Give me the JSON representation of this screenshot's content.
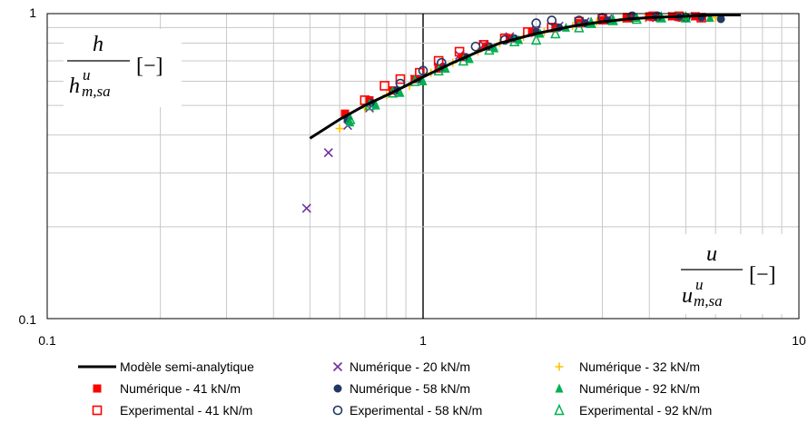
{
  "chart_data": {
    "type": "scatter",
    "xscale": "log",
    "yscale": "log",
    "xlim": [
      0.1,
      10
    ],
    "ylim": [
      0.1,
      1
    ],
    "grid": true,
    "legend_position": "bottom",
    "x_ticks": [
      "0.1",
      "1",
      "10"
    ],
    "y_ticks": [
      "1",
      "0.1"
    ],
    "ylabel": {
      "num": "h",
      "den_base": "h",
      "den_sup": "u",
      "den_sub": "m,sa",
      "unit": "[−]"
    },
    "xlabel": {
      "num": "u",
      "den_base": "u",
      "den_sup": "u",
      "den_sub": "m,sa",
      "unit": "[−]"
    },
    "colors": {
      "black": "#000000",
      "purple": "#7030A0",
      "orange": "#FFC000",
      "red": "#FF0000",
      "navy": "#203864",
      "green": "#00B050"
    },
    "series": [
      {
        "name": "Modèle semi-analytique",
        "kind": "line",
        "color": "#000000",
        "x": [
          0.5,
          0.6,
          0.7,
          0.8,
          0.9,
          1.0,
          1.2,
          1.4,
          1.6,
          2.0,
          2.5,
          3.0,
          3.5,
          4.0,
          5.0,
          6.0,
          7.0
        ],
        "y": [
          0.39,
          0.45,
          0.5,
          0.54,
          0.58,
          0.62,
          0.69,
          0.75,
          0.8,
          0.86,
          0.91,
          0.94,
          0.96,
          0.97,
          0.98,
          0.99,
          0.99
        ]
      },
      {
        "name": "Numérique - 20 kN/m",
        "kind": "marker",
        "marker": "x",
        "color": "#7030A0",
        "x": [
          0.49,
          0.56,
          0.63,
          0.72,
          0.83,
          0.95,
          1.1,
          1.25,
          1.45,
          1.7,
          2.0,
          2.3,
          2.7,
          3.1,
          3.5,
          4.0,
          4.6,
          5.3
        ],
        "y": [
          0.23,
          0.35,
          0.43,
          0.49,
          0.55,
          0.61,
          0.67,
          0.73,
          0.79,
          0.84,
          0.88,
          0.91,
          0.94,
          0.96,
          0.97,
          0.97,
          0.98,
          0.98
        ]
      },
      {
        "name": "Numérique - 32 kN/m",
        "kind": "marker",
        "marker": "plus",
        "color": "#FFC000",
        "x": [
          0.6,
          0.7,
          0.8,
          0.92,
          1.05,
          1.2,
          1.4,
          1.6,
          1.85,
          2.1,
          2.5,
          2.9,
          3.4,
          3.9,
          4.5,
          5.2,
          6.0
        ],
        "y": [
          0.42,
          0.49,
          0.54,
          0.58,
          0.64,
          0.69,
          0.75,
          0.8,
          0.84,
          0.87,
          0.91,
          0.94,
          0.96,
          0.97,
          0.98,
          0.98,
          0.97
        ]
      },
      {
        "name": "Numérique - 41 kN/m",
        "kind": "marker",
        "marker": "square",
        "color": "#FF0000",
        "x": [
          0.62,
          0.72,
          0.83,
          0.95,
          1.1,
          1.27,
          1.47,
          1.7,
          1.95,
          2.25,
          2.6,
          3.0,
          3.5,
          4.0,
          4.6,
          5.3
        ],
        "y": [
          0.47,
          0.52,
          0.56,
          0.61,
          0.66,
          0.72,
          0.78,
          0.83,
          0.87,
          0.9,
          0.93,
          0.95,
          0.97,
          0.98,
          0.98,
          0.98
        ]
      },
      {
        "name": "Numérique - 58 kN/m",
        "kind": "marker",
        "marker": "circle",
        "color": "#203864",
        "x": [
          0.63,
          0.73,
          0.85,
          0.98,
          1.13,
          1.3,
          1.5,
          1.75,
          2.0,
          2.3,
          2.7,
          3.1,
          3.6,
          4.2,
          4.8,
          5.5,
          6.2
        ],
        "y": [
          0.45,
          0.51,
          0.56,
          0.61,
          0.67,
          0.72,
          0.78,
          0.83,
          0.87,
          0.9,
          0.93,
          0.95,
          0.97,
          0.97,
          0.97,
          0.97,
          0.96
        ]
      },
      {
        "name": "Numérique - 92 kN/m",
        "kind": "marker",
        "marker": "triangle",
        "color": "#00B050",
        "x": [
          0.64,
          0.75,
          0.87,
          1.0,
          1.15,
          1.33,
          1.55,
          1.8,
          2.05,
          2.4,
          2.8,
          3.2,
          3.7,
          4.3,
          5.0,
          5.8
        ],
        "y": [
          0.44,
          0.5,
          0.55,
          0.6,
          0.66,
          0.71,
          0.77,
          0.82,
          0.86,
          0.9,
          0.93,
          0.95,
          0.97,
          0.97,
          0.97,
          0.97
        ]
      },
      {
        "name": "Experimental - 41 kN/m",
        "kind": "marker",
        "marker": "square-open",
        "color": "#FF0000",
        "x": [
          0.7,
          0.79,
          0.87,
          0.98,
          1.1,
          1.25,
          1.45,
          1.65,
          1.9,
          2.2,
          2.6,
          3.0,
          3.5,
          4.1,
          4.8,
          5.5
        ],
        "y": [
          0.52,
          0.58,
          0.61,
          0.64,
          0.7,
          0.75,
          0.79,
          0.83,
          0.87,
          0.9,
          0.94,
          0.96,
          0.97,
          0.98,
          0.98,
          0.97
        ]
      },
      {
        "name": "Experimental - 58 kN/m",
        "kind": "marker",
        "marker": "circle-open",
        "color": "#203864",
        "x": [
          0.87,
          1.0,
          1.12,
          1.38,
          1.65,
          2.0,
          2.2,
          2.6,
          3.0,
          3.6,
          4.2,
          5.0
        ],
        "y": [
          0.59,
          0.65,
          0.69,
          0.78,
          0.82,
          0.93,
          0.95,
          0.95,
          0.97,
          0.98,
          0.98,
          0.97
        ]
      },
      {
        "name": "Experimental - 92 kN/m",
        "kind": "marker",
        "marker": "triangle-open",
        "color": "#00B050",
        "x": [
          0.64,
          0.72,
          0.83,
          0.95,
          1.1,
          1.28,
          1.5,
          1.75,
          2.0,
          2.25,
          2.6,
          2.8,
          3.2,
          3.7,
          4.3,
          5.0
        ],
        "y": [
          0.45,
          0.5,
          0.55,
          0.6,
          0.65,
          0.7,
          0.76,
          0.81,
          0.82,
          0.86,
          0.9,
          0.93,
          0.95,
          0.96,
          0.97,
          0.97
        ]
      }
    ],
    "legend_order": [
      0,
      1,
      2,
      3,
      4,
      5,
      6,
      7,
      8
    ]
  }
}
